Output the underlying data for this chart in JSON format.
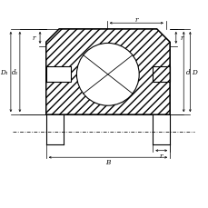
{
  "bg_color": "#ffffff",
  "line_color": "#000000",
  "fig_width": 2.3,
  "fig_height": 2.3,
  "dpi": 100,
  "labels": {
    "r_top": "r",
    "r_left": "r",
    "r_right": "r",
    "r_bottom": "r",
    "B": "B",
    "D1": "D₁",
    "d1": "d₁",
    "d": "d",
    "D": "D"
  }
}
